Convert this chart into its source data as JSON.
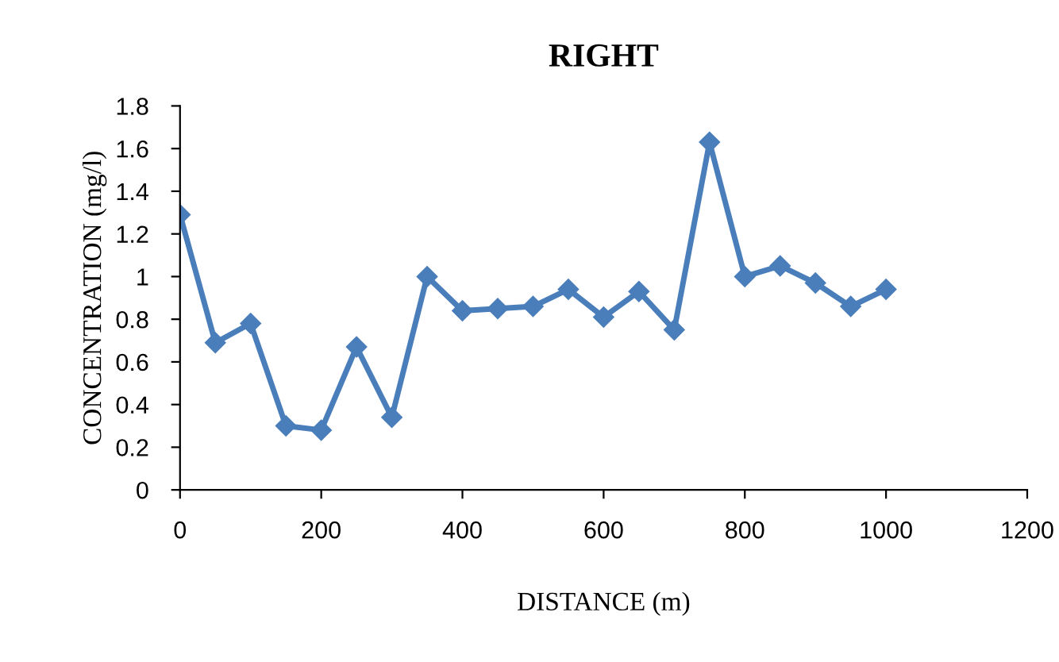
{
  "chart_data": {
    "type": "line",
    "title": "RIGHT",
    "xlabel": "DISTANCE (m)",
    "ylabel": "CONCENTRATION (mg/l)",
    "x": [
      0,
      50,
      100,
      150,
      200,
      250,
      300,
      350,
      400,
      450,
      500,
      550,
      600,
      650,
      700,
      750,
      800,
      850,
      900,
      950,
      1000
    ],
    "series": [
      {
        "color": "#4a7ebb",
        "values": [
          1.29,
          0.69,
          0.78,
          0.3,
          0.28,
          0.67,
          0.34,
          1.0,
          0.84,
          0.85,
          0.86,
          0.94,
          0.81,
          0.93,
          0.75,
          1.63,
          1.0,
          1.05,
          0.97,
          0.86,
          0.94
        ]
      }
    ],
    "xlim": [
      0,
      1200
    ],
    "xticks": [
      0,
      200,
      400,
      600,
      800,
      1000,
      1200
    ],
    "ylim": [
      0,
      1.8
    ],
    "yticks": [
      0,
      {
        "value": 0.2,
        "label": "0.2"
      },
      {
        "value": 0.4,
        "label": "0.4"
      },
      {
        "value": 0.6,
        "label": "0.6"
      },
      {
        "value": 0.8,
        "label": "0.8"
      },
      1,
      {
        "value": 1.2,
        "label": "1.2"
      },
      {
        "value": 1.4,
        "label": "1.4"
      },
      {
        "value": 1.6,
        "label": "1.6"
      },
      {
        "value": 1.8,
        "label": "1.8"
      }
    ],
    "marker": "diamond",
    "line_style": "solid",
    "grid": false,
    "legend": false
  }
}
